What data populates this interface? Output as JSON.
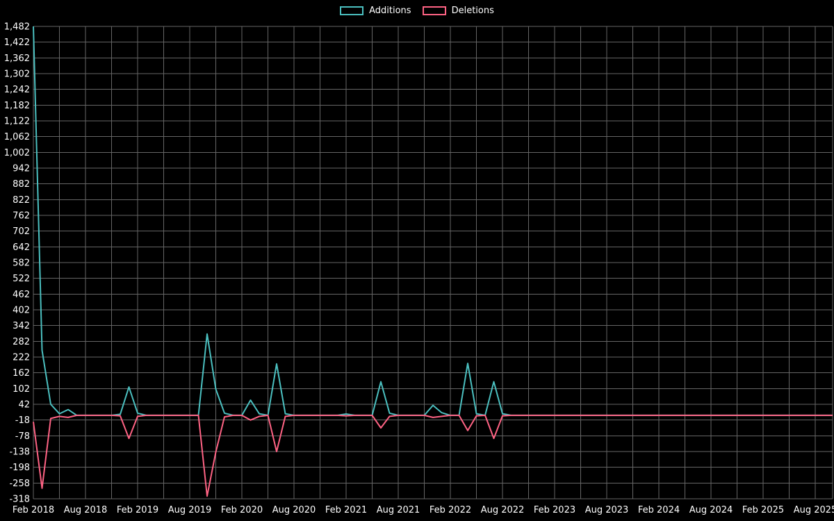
{
  "page": {
    "background": "#000000"
  },
  "chart_data": {
    "type": "line",
    "title": "",
    "legend_position": "top",
    "grid": true,
    "background": "#000000",
    "text_color": "#ffffff",
    "grid_color": "#666666",
    "ylim": [
      -318,
      1482
    ],
    "y_tick_step": 60,
    "y_tick_labels": [
      "1,482",
      "1,422",
      "1,362",
      "1,302",
      "1,242",
      "1,182",
      "1,122",
      "1,062",
      "1,002",
      "942",
      "882",
      "822",
      "762",
      "702",
      "642",
      "582",
      "522",
      "462",
      "402",
      "342",
      "282",
      "222",
      "162",
      "102",
      "42",
      "-18",
      "-78",
      "-138",
      "-198",
      "-258",
      "-318"
    ],
    "x_tick_labels": [
      "Feb 2018",
      "Aug 2018",
      "Feb 2019",
      "Aug 2019",
      "Feb 2020",
      "Aug 2020",
      "Feb 2021",
      "Aug 2021",
      "Feb 2022",
      "Aug 2022",
      "Feb 2023",
      "Aug 2023",
      "Feb 2024",
      "Aug 2024",
      "Feb 2025",
      "Aug 2025"
    ],
    "x": [
      "2018-02",
      "2018-03",
      "2018-04",
      "2018-05",
      "2018-06",
      "2018-07",
      "2018-08",
      "2018-09",
      "2018-10",
      "2018-11",
      "2018-12",
      "2019-01",
      "2019-02",
      "2019-03",
      "2019-04",
      "2019-05",
      "2019-06",
      "2019-07",
      "2019-08",
      "2019-09",
      "2019-10",
      "2019-11",
      "2019-12",
      "2020-01",
      "2020-02",
      "2020-03",
      "2020-04",
      "2020-05",
      "2020-06",
      "2020-07",
      "2020-08",
      "2020-09",
      "2020-10",
      "2020-11",
      "2020-12",
      "2021-01",
      "2021-02",
      "2021-03",
      "2021-04",
      "2021-05",
      "2021-06",
      "2021-07",
      "2021-08",
      "2021-09",
      "2021-10",
      "2021-11",
      "2021-12",
      "2022-01",
      "2022-02",
      "2022-03",
      "2022-04",
      "2022-05",
      "2022-06",
      "2022-07",
      "2022-08",
      "2022-09",
      "2022-10",
      "2022-11",
      "2022-12",
      "2023-01",
      "2023-02",
      "2023-03",
      "2023-04",
      "2023-05",
      "2023-06",
      "2023-07",
      "2023-08",
      "2023-09",
      "2023-10",
      "2023-11",
      "2023-12",
      "2024-01",
      "2024-02",
      "2024-03",
      "2024-04",
      "2024-05",
      "2024-06",
      "2024-07",
      "2024-08",
      "2024-09",
      "2024-10",
      "2024-11",
      "2024-12",
      "2025-01",
      "2025-02",
      "2025-03",
      "2025-04",
      "2025-05",
      "2025-06",
      "2025-07",
      "2025-08",
      "2025-09",
      "2025-10"
    ],
    "series": [
      {
        "name": "Additions",
        "color": "#4bc0c0",
        "values": [
          1482,
          248,
          42,
          6,
          22,
          0,
          0,
          0,
          0,
          0,
          4,
          108,
          8,
          0,
          0,
          0,
          0,
          0,
          0,
          0,
          310,
          100,
          8,
          0,
          0,
          58,
          6,
          0,
          196,
          6,
          0,
          0,
          0,
          0,
          0,
          0,
          5,
          0,
          0,
          0,
          128,
          8,
          0,
          0,
          0,
          0,
          38,
          10,
          0,
          0,
          198,
          6,
          0,
          128,
          6,
          0,
          0,
          0,
          0,
          0,
          0,
          0,
          0,
          0,
          0,
          0,
          0,
          0,
          0,
          0,
          0,
          0,
          0,
          0,
          0,
          0,
          0,
          0,
          0,
          0,
          0,
          0,
          0,
          0,
          0,
          0,
          0,
          0,
          0,
          0,
          0,
          0,
          0
        ]
      },
      {
        "name": "Deletions",
        "color": "#ff6384",
        "values": [
          -25,
          -278,
          -12,
          -4,
          -8,
          0,
          0,
          0,
          0,
          0,
          -2,
          -88,
          -4,
          0,
          0,
          0,
          0,
          0,
          0,
          0,
          -308,
          -140,
          -6,
          0,
          0,
          -18,
          -4,
          0,
          -138,
          -4,
          0,
          0,
          0,
          0,
          0,
          0,
          -2,
          0,
          0,
          0,
          -48,
          -4,
          0,
          0,
          0,
          0,
          -8,
          -4,
          0,
          0,
          -58,
          -2,
          0,
          -88,
          -2,
          0,
          0,
          0,
          0,
          0,
          0,
          0,
          0,
          0,
          0,
          0,
          0,
          0,
          0,
          0,
          0,
          0,
          0,
          0,
          0,
          0,
          0,
          0,
          0,
          0,
          0,
          0,
          0,
          0,
          0,
          0,
          0,
          0,
          0,
          0,
          0,
          0,
          0
        ]
      }
    ]
  }
}
